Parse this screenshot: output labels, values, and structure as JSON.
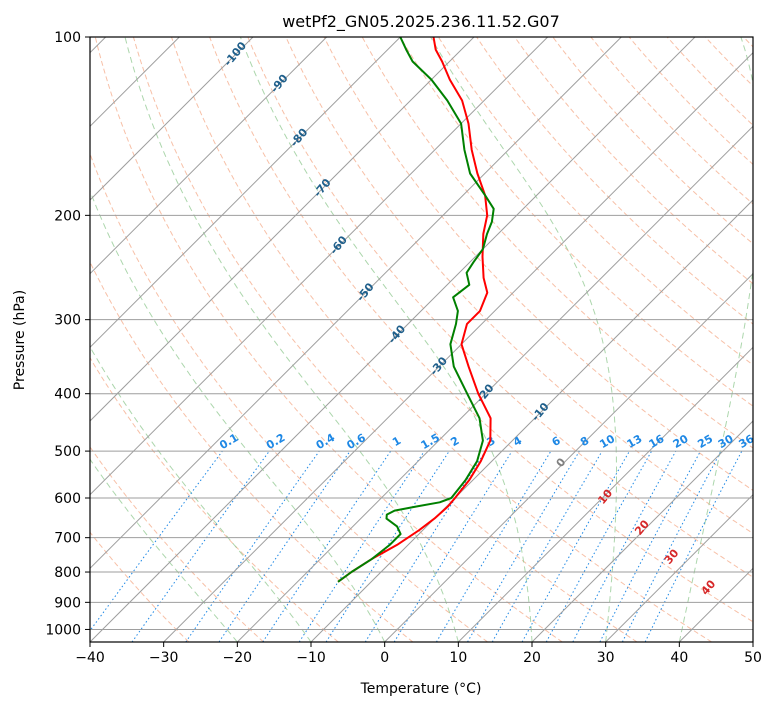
{
  "chart_data": {
    "type": "line",
    "subtype": "skew-t log-p diagram",
    "title": "wetPf2_GN05.2025.236.11.52.G07",
    "xlabel": "Temperature (°C)",
    "ylabel": "Pressure (hPa)",
    "xlim": [
      -40,
      50
    ],
    "ylim": [
      1050,
      100
    ],
    "yscale": "log",
    "x_ticks": [
      "−40",
      "−30",
      "−20",
      "−10",
      "0",
      "10",
      "20",
      "30",
      "40",
      "50"
    ],
    "y_ticks": [
      "100",
      "200",
      "300",
      "400",
      "500",
      "600",
      "700",
      "800",
      "900",
      "1000"
    ],
    "x_tick_values": [
      -40,
      -30,
      -20,
      -10,
      0,
      10,
      20,
      30,
      40,
      50
    ],
    "y_tick_values": [
      100,
      200,
      300,
      400,
      500,
      600,
      700,
      800,
      900,
      1000
    ],
    "grid": true,
    "series": [
      {
        "color": "#ff0000",
        "pressure": [
          831,
          800,
          760,
          720,
          680,
          650,
          620,
          600,
          560,
          520,
          480,
          440,
          400,
          360,
          330,
          305,
          290,
          270,
          255,
          235,
          215,
          200,
          185,
          170,
          155,
          140,
          128,
          118,
          110,
          105,
          100
        ],
        "temperature": [
          -14.5,
          -14,
          -13,
          -11.5,
          -10.5,
          -10,
          -9.8,
          -10,
          -10.5,
          -11.5,
          -13,
          -16,
          -21,
          -26,
          -30,
          -32,
          -32,
          -33.5,
          -36,
          -39,
          -42,
          -44,
          -47,
          -51,
          -55,
          -59,
          -63,
          -67.5,
          -71,
          -73.5,
          -75.5
        ]
      },
      {
        "color": "#008000",
        "pressure": [
          831,
          800,
          760,
          720,
          690,
          670,
          650,
          640,
          630,
          620,
          610,
          600,
          560,
          520,
          480,
          440,
          400,
          360,
          330,
          305,
          290,
          275,
          262,
          250,
          240,
          228,
          215,
          205,
          195,
          185,
          170,
          155,
          140,
          128,
          118,
          110,
          105,
          100
        ],
        "temperature": [
          -14.5,
          -14,
          -13,
          -12.5,
          -12.5,
          -14,
          -16.5,
          -17,
          -16.5,
          -14,
          -11.5,
          -10.5,
          -11,
          -12,
          -14,
          -17.5,
          -22.5,
          -28,
          -31.5,
          -33.5,
          -35,
          -37.5,
          -37,
          -39,
          -39.5,
          -40,
          -41.5,
          -42.5,
          -44,
          -47,
          -52,
          -56,
          -60,
          -65,
          -70,
          -75,
          -77.5,
          -80
        ]
      }
    ],
    "dry_adiabat_labels": [
      "-100",
      "-90",
      "-80",
      "-70",
      "-60",
      "-50",
      "-40",
      "-30",
      "-20",
      "-10"
    ],
    "mixing_ratio_labels": [
      "0.1",
      "0.2",
      "0.4",
      "0.6",
      "1",
      "1.5",
      "2",
      "3",
      "4",
      "6",
      "8",
      "10",
      "13",
      "16",
      "20",
      "25",
      "30",
      "36"
    ],
    "moist_adiabat_labels": [
      "0",
      "10",
      "20",
      "30",
      "40"
    ],
    "colors": {
      "temperature_line": "#ff0000",
      "dewpoint_line": "#008000",
      "dry_adiabat": "#f4a582",
      "moist_adiabat": "#90c890",
      "mixing_ratio": "#1e88e5",
      "isotherm": "#9e9e9e",
      "dry_label": "#1f5f8b",
      "moist_label_zero": "#808080",
      "moist_label": "#d62728",
      "mixing_label": "#1e88e5"
    }
  }
}
